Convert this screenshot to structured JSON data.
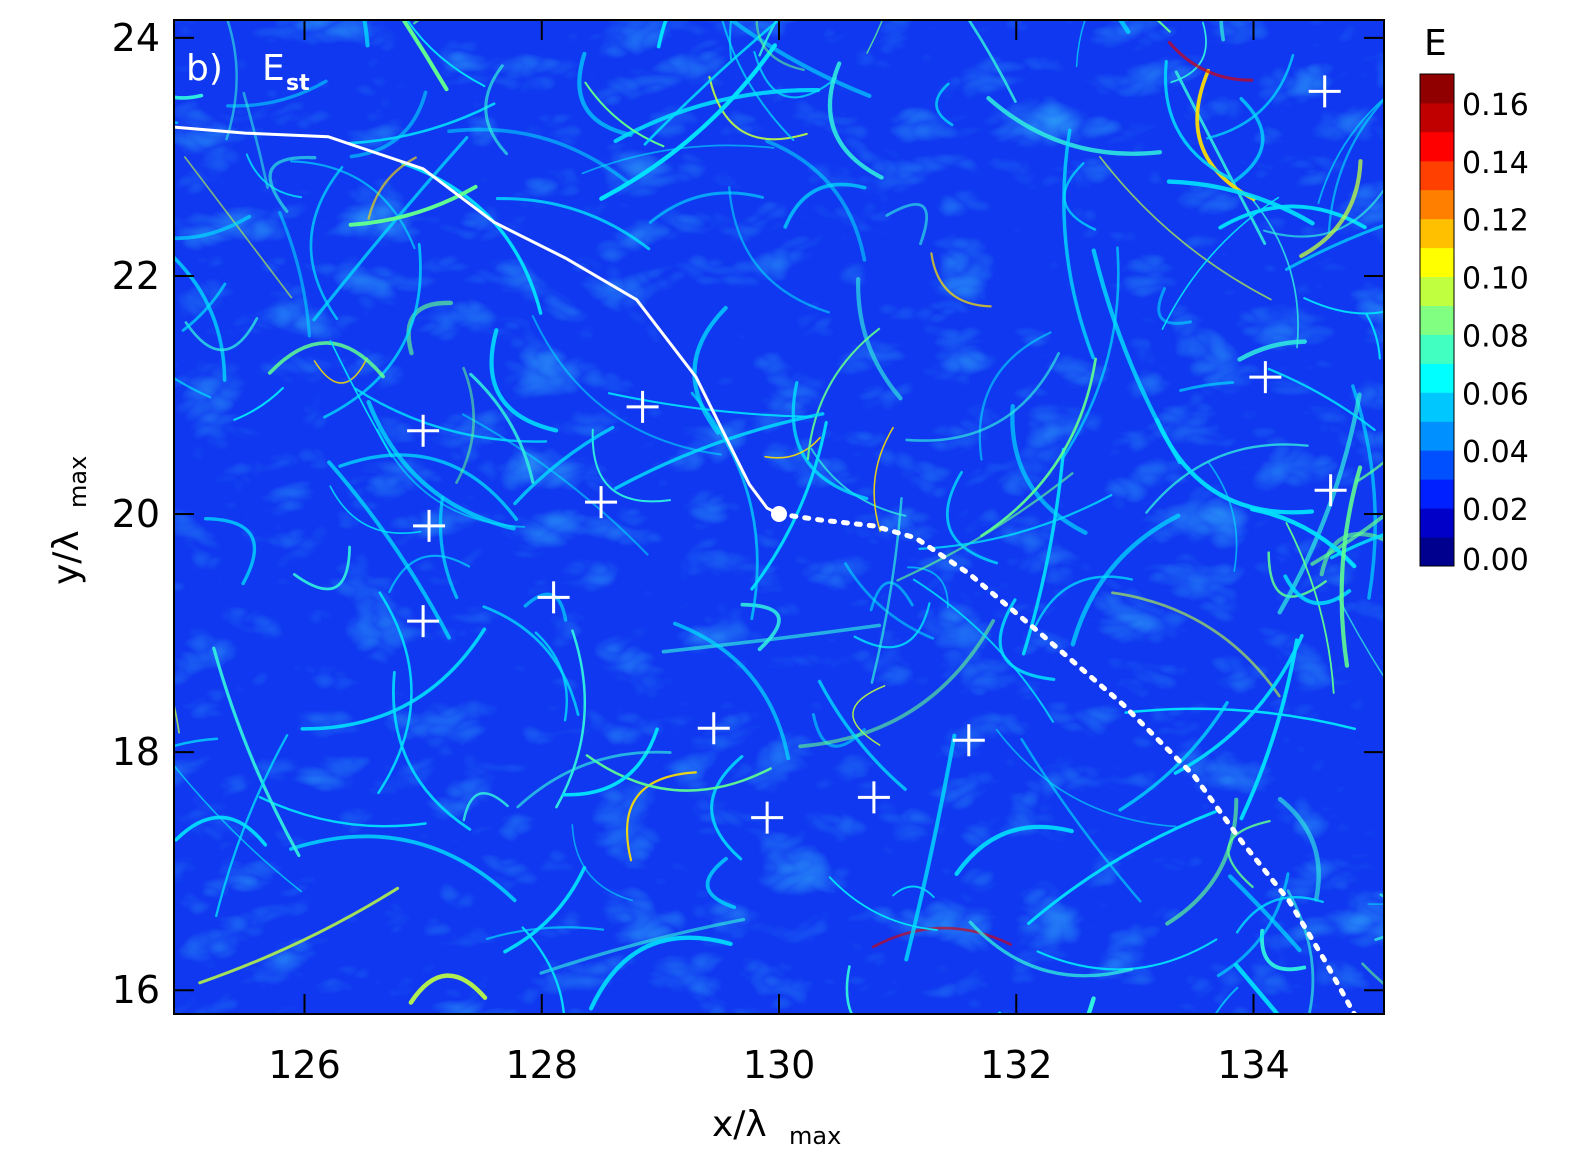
{
  "chart_data": {
    "type": "heatmap",
    "panel_label": "b)",
    "title_main": "E",
    "title_sub": "st",
    "xlabel_main": "x/λ",
    "xlabel_sub": "max",
    "ylabel_main": "y/λ",
    "ylabel_sub": "max",
    "xlim": [
      124.9,
      135.1
    ],
    "ylim": [
      15.8,
      24.15
    ],
    "xticks": [
      126,
      128,
      130,
      132,
      134
    ],
    "yticks": [
      16,
      18,
      20,
      22,
      24
    ],
    "grid": false,
    "colorbar": {
      "title": "E",
      "min": 0.0,
      "max": 0.17,
      "tick_labels": [
        "0.00",
        "0.02",
        "0.04",
        "0.06",
        "0.08",
        "0.10",
        "0.12",
        "0.14",
        "0.16"
      ],
      "tick_values": [
        0.0,
        0.02,
        0.04,
        0.06,
        0.08,
        0.1,
        0.12,
        0.14,
        0.16
      ],
      "colors": [
        "#00008f",
        "#0000c8",
        "#0020ff",
        "#0050ff",
        "#0090ff",
        "#00c8ff",
        "#00ffff",
        "#40ffc0",
        "#80ff80",
        "#c0ff40",
        "#ffff00",
        "#ffc000",
        "#ff8000",
        "#ff4000",
        "#ff0000",
        "#c00000",
        "#900000"
      ]
    },
    "background_color": "#1038f0",
    "solid_curve": {
      "x": [
        124.9,
        125.5,
        126.2,
        127.0,
        127.6,
        128.2,
        128.8,
        129.3,
        129.6,
        129.75,
        129.9,
        130.0
      ],
      "y": [
        23.25,
        23.2,
        23.17,
        22.9,
        22.45,
        22.15,
        21.8,
        21.15,
        20.55,
        20.25,
        20.05,
        20.0
      ]
    },
    "dotted_curve": {
      "x": [
        130.0,
        130.35,
        130.8,
        131.15,
        131.6,
        132.2,
        132.9,
        133.5,
        133.9,
        134.3,
        134.6,
        134.85
      ],
      "y": [
        20.0,
        19.95,
        19.9,
        19.8,
        19.5,
        19.0,
        18.4,
        17.8,
        17.25,
        16.75,
        16.25,
        15.8
      ]
    },
    "junction_point": {
      "x": 130.0,
      "y": 20.0
    },
    "markers": [
      {
        "x": 127.0,
        "y": 20.7
      },
      {
        "x": 127.05,
        "y": 19.9
      },
      {
        "x": 127.0,
        "y": 19.1
      },
      {
        "x": 128.1,
        "y": 19.3
      },
      {
        "x": 128.5,
        "y": 20.1
      },
      {
        "x": 128.85,
        "y": 20.9
      },
      {
        "x": 129.45,
        "y": 18.2
      },
      {
        "x": 129.9,
        "y": 17.45
      },
      {
        "x": 130.8,
        "y": 17.62
      },
      {
        "x": 131.6,
        "y": 18.1
      },
      {
        "x": 134.1,
        "y": 21.15
      },
      {
        "x": 134.65,
        "y": 20.2
      },
      {
        "x": 134.6,
        "y": 23.55
      }
    ],
    "annotations": [
      "b)",
      "E",
      "st"
    ]
  }
}
